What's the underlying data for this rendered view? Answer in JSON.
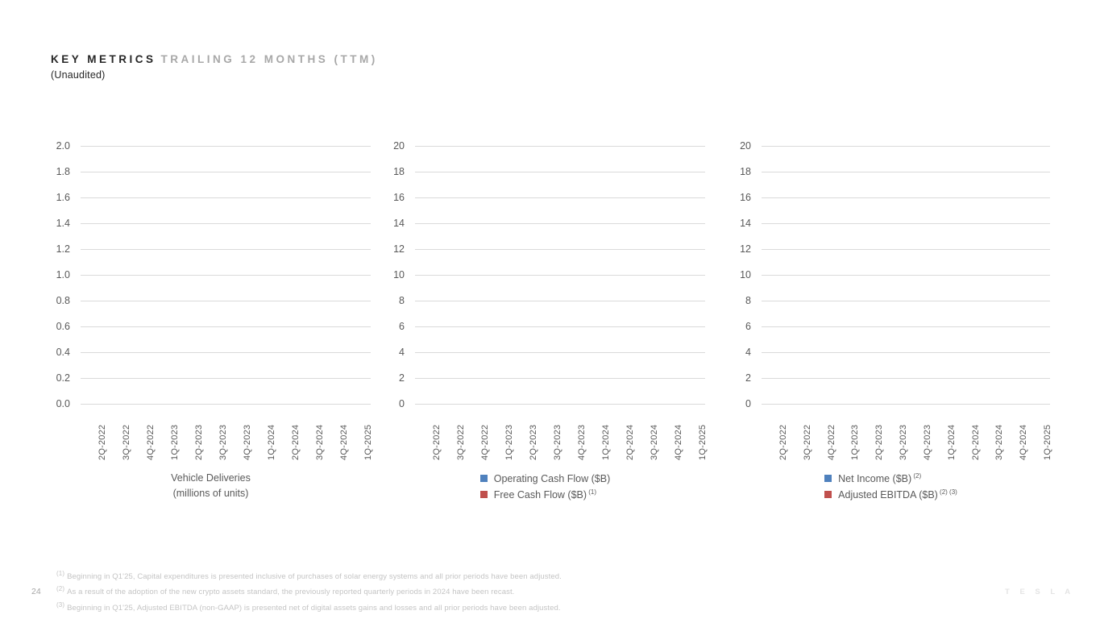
{
  "slide": {
    "title_primary": "KEY METRICS",
    "title_secondary": "TRAILING 12 MONTHS (TTM)",
    "subtitle": "(Unaudited)",
    "page_number": "24",
    "brand_wordmark": "T E S L A"
  },
  "colors": {
    "series_blue": "#4F81BD",
    "series_red": "#C0504D",
    "gridline": "#DADADA",
    "axis_text": "#595959",
    "footnote_text": "#C4C4C4"
  },
  "footnotes": [
    {
      "marker": "(1)",
      "text": "Beginning in Q1'25, Capital expenditures is presented inclusive of purchases of solar energy systems and all prior periods have been adjusted."
    },
    {
      "marker": "(2)",
      "text": "As a result of the adoption of the new crypto assets standard, the previously reported quarterly periods in 2024 have been recast."
    },
    {
      "marker": "(3)",
      "text": "Beginning in Q1'25, Adjusted EBITDA (non-GAAP) is presented net of digital assets gains and losses and all prior periods have been adjusted."
    }
  ],
  "chart_data": [
    {
      "type": "bar",
      "title": "Vehicle Deliveries",
      "title_line2": "(millions of units)",
      "categories": [
        "2Q-2022",
        "3Q-2022",
        "4Q-2022",
        "1Q-2023",
        "2Q-2023",
        "3Q-2023",
        "4Q-2023",
        "1Q-2024",
        "2Q-2024",
        "3Q-2024",
        "4Q-2024",
        "1Q-2025"
      ],
      "y_ticks": [
        "2.0",
        "1.8",
        "1.6",
        "1.4",
        "1.2",
        "1.0",
        "0.8",
        "0.6",
        "0.4",
        "0.2",
        "0.0"
      ],
      "ylim": [
        0.0,
        2.0
      ],
      "ytick_step": 0.2,
      "grid": true,
      "legend": [],
      "series": [
        {
          "name": "Vehicle Deliveries (millions of units)",
          "values": []
        }
      ],
      "no_data_rendered": true
    },
    {
      "type": "bar",
      "title": "",
      "title_line2": "",
      "categories": [
        "2Q-2022",
        "3Q-2022",
        "4Q-2022",
        "1Q-2023",
        "2Q-2023",
        "3Q-2023",
        "4Q-2023",
        "1Q-2024",
        "2Q-2024",
        "3Q-2024",
        "4Q-2024",
        "1Q-2025"
      ],
      "y_ticks": [
        "20",
        "18",
        "16",
        "14",
        "12",
        "10",
        "8",
        "6",
        "4",
        "2",
        "0"
      ],
      "ylim": [
        0,
        20
      ],
      "ytick_step": 2,
      "grid": true,
      "legend_position": "bottom",
      "legend": [
        {
          "label": "Operating Cash Flow ($B)",
          "sup": "",
          "color": "#4F81BD"
        },
        {
          "label": "Free Cash Flow ($B)",
          "sup": "(1)",
          "color": "#C0504D"
        }
      ],
      "series": [
        {
          "name": "Operating Cash Flow ($B)",
          "values": []
        },
        {
          "name": "Free Cash Flow ($B)",
          "values": []
        }
      ],
      "no_data_rendered": true
    },
    {
      "type": "bar",
      "title": "",
      "title_line2": "",
      "categories": [
        "2Q-2022",
        "3Q-2022",
        "4Q-2022",
        "1Q-2023",
        "2Q-2023",
        "3Q-2023",
        "4Q-2023",
        "1Q-2024",
        "2Q-2024",
        "3Q-2024",
        "4Q-2024",
        "1Q-2025"
      ],
      "y_ticks": [
        "20",
        "18",
        "16",
        "14",
        "12",
        "10",
        "8",
        "6",
        "4",
        "2",
        "0"
      ],
      "ylim": [
        0,
        20
      ],
      "ytick_step": 2,
      "grid": true,
      "legend_position": "bottom",
      "legend": [
        {
          "label": "Net Income ($B)",
          "sup": "(2)",
          "color": "#4F81BD"
        },
        {
          "label": "Adjusted EBITDA ($B)",
          "sup": "(2) (3)",
          "color": "#C0504D"
        }
      ],
      "series": [
        {
          "name": "Net Income ($B)",
          "values": []
        },
        {
          "name": "Adjusted EBITDA ($B)",
          "values": []
        }
      ],
      "no_data_rendered": true
    }
  ]
}
